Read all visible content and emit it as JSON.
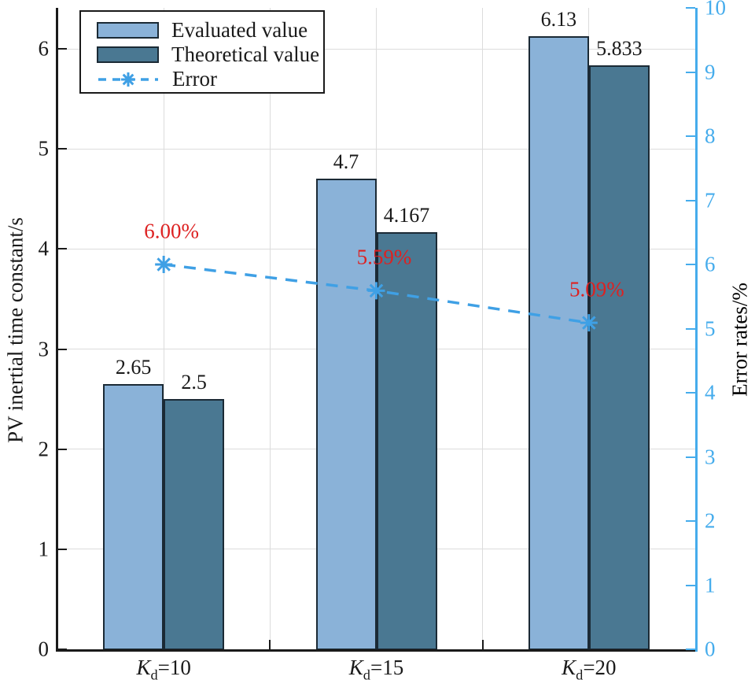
{
  "chart_data": {
    "type": "bar",
    "title": "",
    "categories": [
      "Kd=10",
      "Kd=15",
      "Kd=20"
    ],
    "x_tick_label_parts": [
      {
        "var": "K",
        "sub": "d",
        "rest": "=10"
      },
      {
        "var": "K",
        "sub": "d",
        "rest": "=15"
      },
      {
        "var": "K",
        "sub": "d",
        "rest": "=20"
      }
    ],
    "series": [
      {
        "name": "Evaluated value",
        "type": "bar",
        "axis": "left",
        "values": [
          2.65,
          4.7,
          6.13
        ],
        "value_labels": [
          "2.65",
          "4.7",
          "6.13"
        ],
        "color": "#8AB2D8"
      },
      {
        "name": "Theoretical value",
        "type": "bar",
        "axis": "left",
        "values": [
          2.5,
          4.167,
          5.833
        ],
        "value_labels": [
          "2.5",
          "4.167",
          "5.833"
        ],
        "color": "#4A7892"
      },
      {
        "name": "Error",
        "type": "line",
        "axis": "right",
        "values": [
          6.0,
          5.59,
          5.09
        ],
        "value_labels": [
          "6.00%",
          "5.59%",
          "5.09%"
        ],
        "color": "#3FA0E5",
        "label_color": "#DD2121",
        "marker": "asterisk",
        "line_style": "dashed"
      }
    ],
    "left_axis": {
      "label": "PV inertial time constant/s",
      "min": 0,
      "max": 6.41,
      "ticks": [
        0,
        1,
        2,
        3,
        4,
        5,
        6
      ],
      "color": "#1A1A1A"
    },
    "right_axis": {
      "label": "Error rates/%",
      "min": 0,
      "max": 10,
      "ticks": [
        0,
        1,
        2,
        3,
        4,
        5,
        6,
        7,
        8,
        9,
        10
      ],
      "color": "#45ACEC"
    },
    "legend": {
      "position": "top-left",
      "items": [
        {
          "label": "Evaluated value",
          "swatch": "bar",
          "color": "#8AB2D8"
        },
        {
          "label": "Theoretical value",
          "swatch": "bar",
          "color": "#4A7892"
        },
        {
          "label": "Error",
          "swatch": "line",
          "color": "#3FA0E5"
        }
      ]
    },
    "grid": {
      "horizontal": true,
      "vertical": true,
      "color": "#DCDCDC"
    },
    "bar_edge_color": "#1B2A35",
    "background": "#FFFFFF"
  }
}
